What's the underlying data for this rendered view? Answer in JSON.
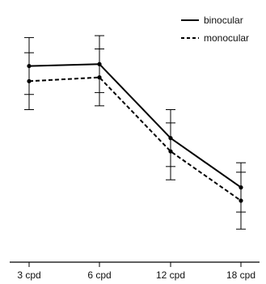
{
  "chart_data": {
    "type": "line",
    "categories": [
      "3 cpd",
      "6 cpd",
      "12 cpd",
      "18 cpd"
    ],
    "series": [
      {
        "name": "binocular",
        "values": [
          0.78,
          0.79,
          0.4,
          0.14
        ],
        "err_low": [
          0.63,
          0.64,
          0.25,
          0.01
        ],
        "err_high": [
          0.93,
          0.94,
          0.55,
          0.27
        ],
        "line_style": "solid",
        "color": "#000000"
      },
      {
        "name": "monocular",
        "values": [
          0.7,
          0.72,
          0.33,
          0.07
        ],
        "err_low": [
          0.55,
          0.57,
          0.18,
          -0.08
        ],
        "err_high": [
          0.85,
          0.87,
          0.48,
          0.22
        ],
        "line_style": "dashed",
        "color": "#000000"
      }
    ],
    "ylim": [
      -0.22,
      1.0
    ],
    "legend_position": "top-right",
    "grid": false
  }
}
